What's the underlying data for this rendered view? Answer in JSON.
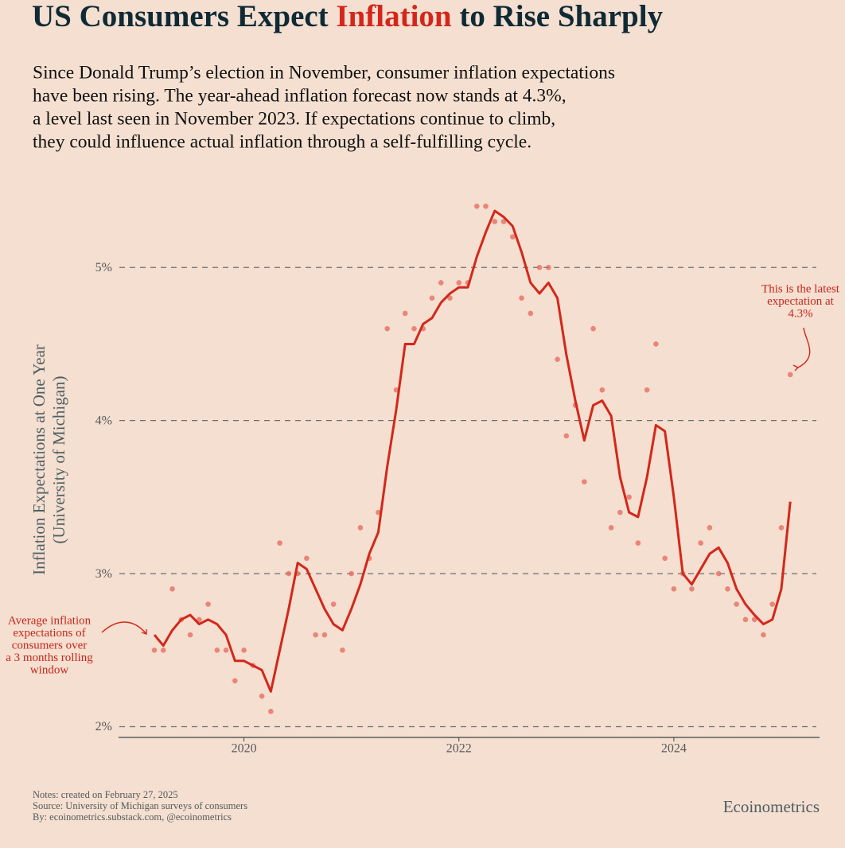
{
  "chart_data": {
    "type": "line",
    "title_parts": [
      "US Consumers Expect",
      "Inflation",
      "to Rise Sharply"
    ],
    "subtitle_lines": [
      "Since Donald Trump’s election in November, consumer inflation expectations",
      "have been rising. The year-ahead inflation forecast now stands at 4.3%,",
      "a level last seen in November 2023. If expectations continue to climb,",
      "they could influence actual inflation through a self-fulfilling cycle."
    ],
    "y_label_lines": [
      "Inflation Expectations at One Year",
      "(University of Michigan)"
    ],
    "x": [
      "2019-03",
      "2019-04",
      "2019-05",
      "2019-06",
      "2019-07",
      "2019-08",
      "2019-09",
      "2019-10",
      "2019-11",
      "2019-12",
      "2020-01",
      "2020-02",
      "2020-03",
      "2020-04",
      "2020-05",
      "2020-06",
      "2020-07",
      "2020-08",
      "2020-09",
      "2020-10",
      "2020-11",
      "2020-12",
      "2021-01",
      "2021-02",
      "2021-03",
      "2021-04",
      "2021-05",
      "2021-06",
      "2021-07",
      "2021-08",
      "2021-09",
      "2021-10",
      "2021-11",
      "2021-12",
      "2022-01",
      "2022-02",
      "2022-03",
      "2022-04",
      "2022-05",
      "2022-06",
      "2022-07",
      "2022-08",
      "2022-09",
      "2022-10",
      "2022-11",
      "2022-12",
      "2023-01",
      "2023-02",
      "2023-03",
      "2023-04",
      "2023-05",
      "2023-06",
      "2023-07",
      "2023-08",
      "2023-09",
      "2023-10",
      "2023-11",
      "2023-12",
      "2024-01",
      "2024-02",
      "2024-03",
      "2024-04",
      "2024-05",
      "2024-06",
      "2024-07",
      "2024-08",
      "2024-09",
      "2024-10",
      "2024-11",
      "2024-12",
      "2025-01",
      "2025-02"
    ],
    "series": [
      {
        "type": "scatter",
        "color": "#e5675c",
        "values": [
          2.5,
          2.5,
          2.9,
          2.7,
          2.6,
          2.7,
          2.8,
          2.5,
          2.5,
          2.3,
          2.5,
          2.4,
          2.2,
          2.1,
          3.2,
          3.0,
          3.0,
          3.1,
          2.6,
          2.6,
          2.8,
          2.5,
          3.0,
          3.3,
          3.1,
          3.4,
          4.6,
          4.2,
          4.7,
          4.6,
          4.6,
          4.8,
          4.9,
          4.8,
          4.9,
          4.9,
          5.4,
          5.4,
          5.3,
          5.3,
          5.2,
          4.8,
          4.7,
          5.0,
          5.0,
          4.4,
          3.9,
          4.1,
          3.6,
          4.6,
          4.2,
          3.3,
          3.4,
          3.5,
          3.2,
          4.2,
          4.5,
          3.1,
          2.9,
          3.0,
          2.9,
          3.2,
          3.3,
          3.0,
          2.9,
          2.8,
          2.7,
          2.7,
          2.6,
          2.8,
          3.3,
          4.3
        ]
      },
      {
        "type": "line",
        "color": "#d3271b",
        "values": [
          2.6,
          2.53,
          2.63,
          2.7,
          2.73,
          2.67,
          2.7,
          2.67,
          2.6,
          2.43,
          2.43,
          2.4,
          2.37,
          2.23,
          2.5,
          2.77,
          3.07,
          3.03,
          2.9,
          2.77,
          2.67,
          2.63,
          2.77,
          2.93,
          3.13,
          3.27,
          3.7,
          4.07,
          4.5,
          4.5,
          4.63,
          4.67,
          4.77,
          4.83,
          4.87,
          4.87,
          5.07,
          5.23,
          5.37,
          5.33,
          5.27,
          5.1,
          4.9,
          4.83,
          4.9,
          4.8,
          4.43,
          4.13,
          3.87,
          4.1,
          4.13,
          4.03,
          3.63,
          3.4,
          3.37,
          3.63,
          3.97,
          3.93,
          3.5,
          3.0,
          2.93,
          3.03,
          3.13,
          3.17,
          3.07,
          2.9,
          2.8,
          2.73,
          2.67,
          2.7,
          2.9,
          3.47
        ]
      }
    ],
    "xlim": [
      "2018-11",
      "2025-05"
    ],
    "xticks": [
      "2020",
      "2022",
      "2024"
    ],
    "ylim": [
      1.93,
      5.5
    ],
    "yticks": [
      {
        "value": 2,
        "label": "2%"
      },
      {
        "value": 3,
        "label": "3%"
      },
      {
        "value": 4,
        "label": "4%"
      },
      {
        "value": 5,
        "label": "5%"
      }
    ],
    "grid": true,
    "annotations": [
      {
        "lines": [
          "This is the latest",
          "expectation at",
          "4.3%"
        ]
      },
      {
        "lines": [
          "Average inflation",
          "expectations of",
          "consumers over",
          "a 3 months rolling",
          "window"
        ]
      }
    ],
    "notes": [
      "Notes: created on February 27, 2025",
      "Source: University of Michigan surveys of consumers",
      "By: ecoinometrics.substack.com, @ecoinometrics"
    ],
    "brand": "Ecoinometrics"
  }
}
